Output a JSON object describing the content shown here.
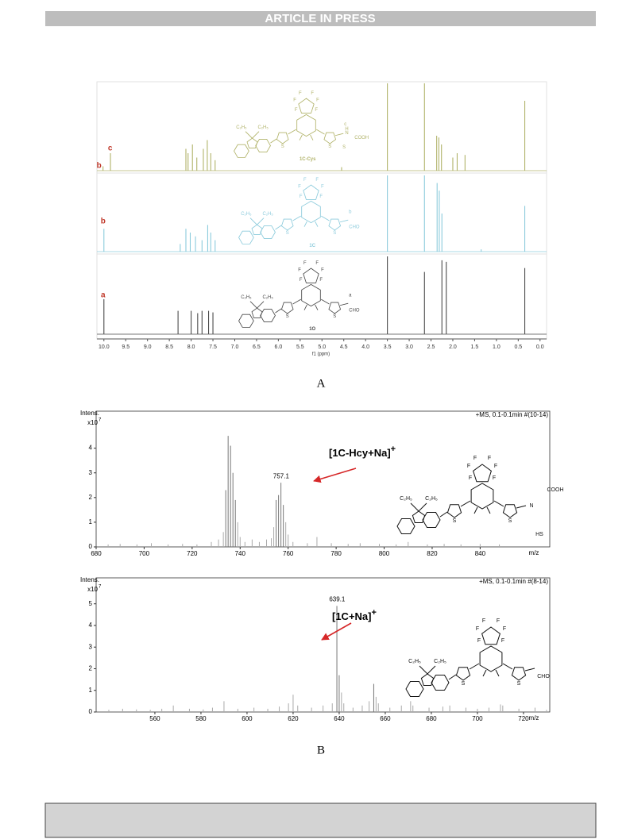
{
  "header": {
    "title": "ARTICLE IN PRESS"
  },
  "figure_a": {
    "xlabel": "f1 (ppm)",
    "xlim": [
      10.16,
      -0.15
    ],
    "xticks": [
      {
        "value": 10,
        "label": "10.0"
      },
      9.5,
      {
        "value": 9,
        "label": "9.0"
      },
      8.5,
      {
        "value": 8,
        "label": "8.0"
      },
      7.5,
      {
        "value": 7,
        "label": "7.0"
      },
      6.5,
      {
        "value": 6,
        "label": "6.0"
      },
      5.5,
      {
        "value": 5,
        "label": "5.0"
      },
      4.5,
      {
        "value": 4,
        "label": "4.0"
      },
      3.5,
      {
        "value": 3,
        "label": "3.0"
      },
      2.5,
      {
        "value": 2,
        "label": "2.0"
      },
      1.5,
      {
        "value": 1,
        "label": "1.0"
      },
      0.5,
      {
        "value": 0,
        "label": "0.0"
      }
    ],
    "traces": [
      {
        "color": "#b1b36a",
        "letters": [
          "b",
          "c"
        ],
        "peaks": {
          "ppm": [
            10.02,
            9.85,
            8.12,
            8.07,
            7.97,
            7.87,
            7.72,
            7.63,
            7.55,
            7.45,
            4.55,
            3.5,
            2.65,
            2.37,
            2.32,
            2.26,
            2.0,
            1.9,
            1.72,
            0.35
          ],
          "height": [
            0.05,
            0.2,
            0.25,
            0.2,
            0.3,
            0.15,
            0.25,
            0.35,
            0.2,
            0.12,
            0.04,
            1.0,
            1.0,
            0.4,
            0.38,
            0.3,
            0.15,
            0.2,
            0.18,
            0.8
          ]
        },
        "structure": {
          "fluorines": [
            "F",
            "F",
            "F",
            "F",
            "F",
            "F"
          ],
          "ethyls": [
            "C₂H₅",
            "C₂H₅"
          ],
          "sulfurs": [
            "S",
            "S"
          ],
          "tail": [
            "c",
            "H",
            "N",
            "S",
            "COOH"
          ],
          "name": "1C-Cys"
        }
      },
      {
        "color": "#8ccbdc",
        "letters": [
          "b"
        ],
        "peaks": {
          "ppm": [
            10.0,
            8.25,
            8.12,
            8.02,
            7.9,
            7.75,
            7.62,
            7.55,
            7.45,
            3.5,
            2.65,
            2.36,
            2.31,
            2.25,
            1.35,
            0.35
          ],
          "height": [
            0.3,
            0.1,
            0.3,
            0.25,
            0.2,
            0.15,
            0.35,
            0.25,
            0.15,
            1.0,
            1.0,
            0.9,
            0.8,
            0.5,
            0.03,
            0.6
          ]
        },
        "structure": {
          "fluorines": [
            "F",
            "F",
            "F",
            "F",
            "F",
            "F"
          ],
          "ethyls": [
            "C₂H₅",
            "C₂H₅"
          ],
          "sulfurs": [
            "S",
            "S"
          ],
          "tail": [
            "b",
            "CHO"
          ],
          "name": "1C"
        }
      },
      {
        "color": "#4a4a4a",
        "letters": [
          "a"
        ],
        "peaks": {
          "ppm": [
            10.0,
            8.3,
            8.0,
            7.85,
            7.75,
            7.6,
            7.5,
            3.5,
            2.65,
            2.25,
            2.15,
            0.35
          ],
          "height": [
            0.45,
            0.3,
            0.3,
            0.27,
            0.3,
            0.3,
            0.28,
            1.0,
            0.8,
            0.95,
            0.93,
            0.85
          ]
        },
        "structure": {
          "fluorines": [
            "F",
            "F",
            "F",
            "F",
            "F",
            "F"
          ],
          "ethyls": [
            "C₂H₅",
            "C₂H₅"
          ],
          "sulfurs": [
            "S",
            "S"
          ],
          "tail": [
            "a",
            "CHO"
          ],
          "name": "1O"
        }
      }
    ],
    "caption": "A"
  },
  "figure_b": {
    "panels": [
      {
        "ylabel": "Intens.",
        "yunit": "x10",
        "yexp": "7",
        "info": "+MS, 0.1-0.1min #(10-14)",
        "xlabel": "m/z",
        "xlim": [
          680,
          869
        ],
        "xticks": [
          680,
          700,
          720,
          740,
          760,
          780,
          800,
          820,
          840
        ],
        "ylim": [
          0,
          5.5
        ],
        "yticks": [
          0,
          1,
          2,
          3,
          4
        ],
        "peaks": {
          "mz": [
            685,
            690,
            697,
            703,
            710,
            716,
            722,
            728,
            731,
            733,
            734,
            735,
            736,
            737,
            738,
            739,
            740,
            742,
            745,
            748,
            751,
            753,
            754,
            755,
            756,
            757,
            758,
            759,
            760,
            762,
            768,
            772,
            778,
            785,
            790,
            798,
            805,
            810,
            818,
            825,
            832,
            840,
            848
          ],
          "intensity": [
            0.1,
            0.12,
            0.1,
            0.15,
            0.1,
            0.12,
            0.1,
            0.2,
            0.3,
            0.6,
            2.3,
            4.5,
            4.1,
            3.0,
            1.9,
            1.0,
            0.4,
            0.2,
            0.3,
            0.2,
            0.3,
            0.35,
            0.8,
            1.9,
            2.1,
            2.6,
            1.7,
            1.0,
            0.5,
            0.2,
            0.15,
            0.4,
            0.15,
            0.12,
            0.15,
            0.12,
            0.1,
            0.2,
            0.1,
            0.12,
            0.1,
            0.12,
            0.1
          ]
        },
        "labeled_peak": 757.1,
        "ion": "[1C-Hcy+Na]",
        "ion_charge": "+",
        "structure": {
          "fluorines": [
            "F",
            "F",
            "F",
            "F",
            "F",
            "F"
          ],
          "ethyls": [
            "C₂H₅",
            "C₂H₅"
          ],
          "sulfurs": [
            "S",
            "S"
          ],
          "tail": [
            "N",
            "COOH",
            "HS"
          ]
        }
      },
      {
        "ylabel": "Intens.",
        "yunit": "x10",
        "yexp": "7",
        "info": "+MS, 0.1-0.1min #(8-14)",
        "xlabel": "m/z",
        "xlim": [
          534.5,
          731.4
        ],
        "xticks": [
          560,
          580,
          600,
          620,
          640,
          660,
          680,
          700,
          720
        ],
        "ylim": [
          0,
          6.2
        ],
        "yticks": [
          0,
          1,
          2,
          3,
          4,
          5
        ],
        "peaks": {
          "mz": [
            540,
            546,
            552,
            558,
            563,
            568,
            575,
            581,
            585,
            590,
            596,
            603,
            609,
            614,
            618,
            620,
            622,
            628,
            633,
            637,
            639,
            640,
            641,
            642,
            646,
            650,
            653,
            655,
            656,
            657,
            662,
            667,
            671,
            672,
            679,
            685,
            688,
            695,
            700,
            705,
            710,
            711,
            718,
            725,
            730
          ],
          "intensity": [
            0.1,
            0.15,
            0.12,
            0.1,
            0.15,
            0.3,
            0.15,
            0.12,
            0.2,
            0.5,
            0.15,
            0.2,
            0.15,
            0.25,
            0.4,
            0.8,
            0.3,
            0.2,
            0.3,
            0.4,
            4.9,
            1.7,
            0.9,
            0.4,
            0.2,
            0.3,
            0.5,
            1.3,
            0.7,
            0.4,
            0.2,
            0.3,
            0.5,
            0.3,
            0.2,
            0.25,
            0.3,
            0.2,
            0.15,
            0.2,
            0.35,
            0.3,
            0.15,
            0.2,
            0.1
          ]
        },
        "labeled_peak": 639.1,
        "ion": "[1C+Na]",
        "ion_charge": "+",
        "structure": {
          "fluorines": [
            "F",
            "F",
            "F",
            "F",
            "F",
            "F"
          ],
          "ethyls": [
            "C₂H₅",
            "C₂H₅"
          ],
          "sulfurs": [
            "S",
            "S"
          ],
          "tail": [
            "CHO"
          ]
        }
      }
    ],
    "caption": "B"
  }
}
